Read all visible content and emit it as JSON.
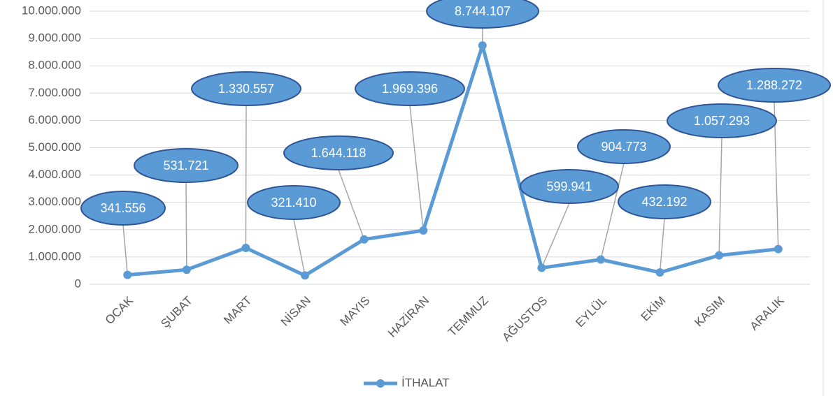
{
  "chart_data": {
    "type": "line",
    "categories": [
      "OCAK",
      "ŞUBAT",
      "MART",
      "NİSAN",
      "MAYIS",
      "HAZİRAN",
      "TEMMUZ",
      "AĞUSTOS",
      "EYLÜL",
      "EKİM",
      "KASIM",
      "ARALIK"
    ],
    "series": [
      {
        "name": "İTHALAT",
        "color": "#5b9bd5",
        "values": [
          341556,
          531721,
          1330557,
          321410,
          1644118,
          1969396,
          8744107,
          599941,
          904773,
          432192,
          1057293,
          1288272
        ],
        "value_labels": [
          "341.556",
          "531.721",
          "1.330.557",
          "321.410",
          "1.644.118",
          "1.969.396",
          "8.744.107",
          "599.941",
          "904.773",
          "432.192",
          "1.057.293",
          "1.288.272"
        ]
      }
    ],
    "ylim": [
      0,
      10000000
    ],
    "yticks": [
      0,
      {
        "value": 1000000,
        "label": "1.000.000"
      },
      {
        "value": 2000000,
        "label": "2.000.000"
      },
      {
        "value": 3000000,
        "label": "3.000.000"
      },
      {
        "value": 4000000,
        "label": "4.000.000"
      },
      {
        "value": 5000000,
        "label": "5.000.000"
      },
      {
        "value": 6000000,
        "label": "6.000.000"
      },
      {
        "value": 7000000,
        "label": "7.000.000"
      },
      {
        "value": 8000000,
        "label": "8.000.000"
      },
      {
        "value": 9000000,
        "label": "9.000.000"
      },
      {
        "value": 10000000,
        "label": "10.000.000"
      }
    ],
    "grid": true,
    "legend": "bottom"
  }
}
